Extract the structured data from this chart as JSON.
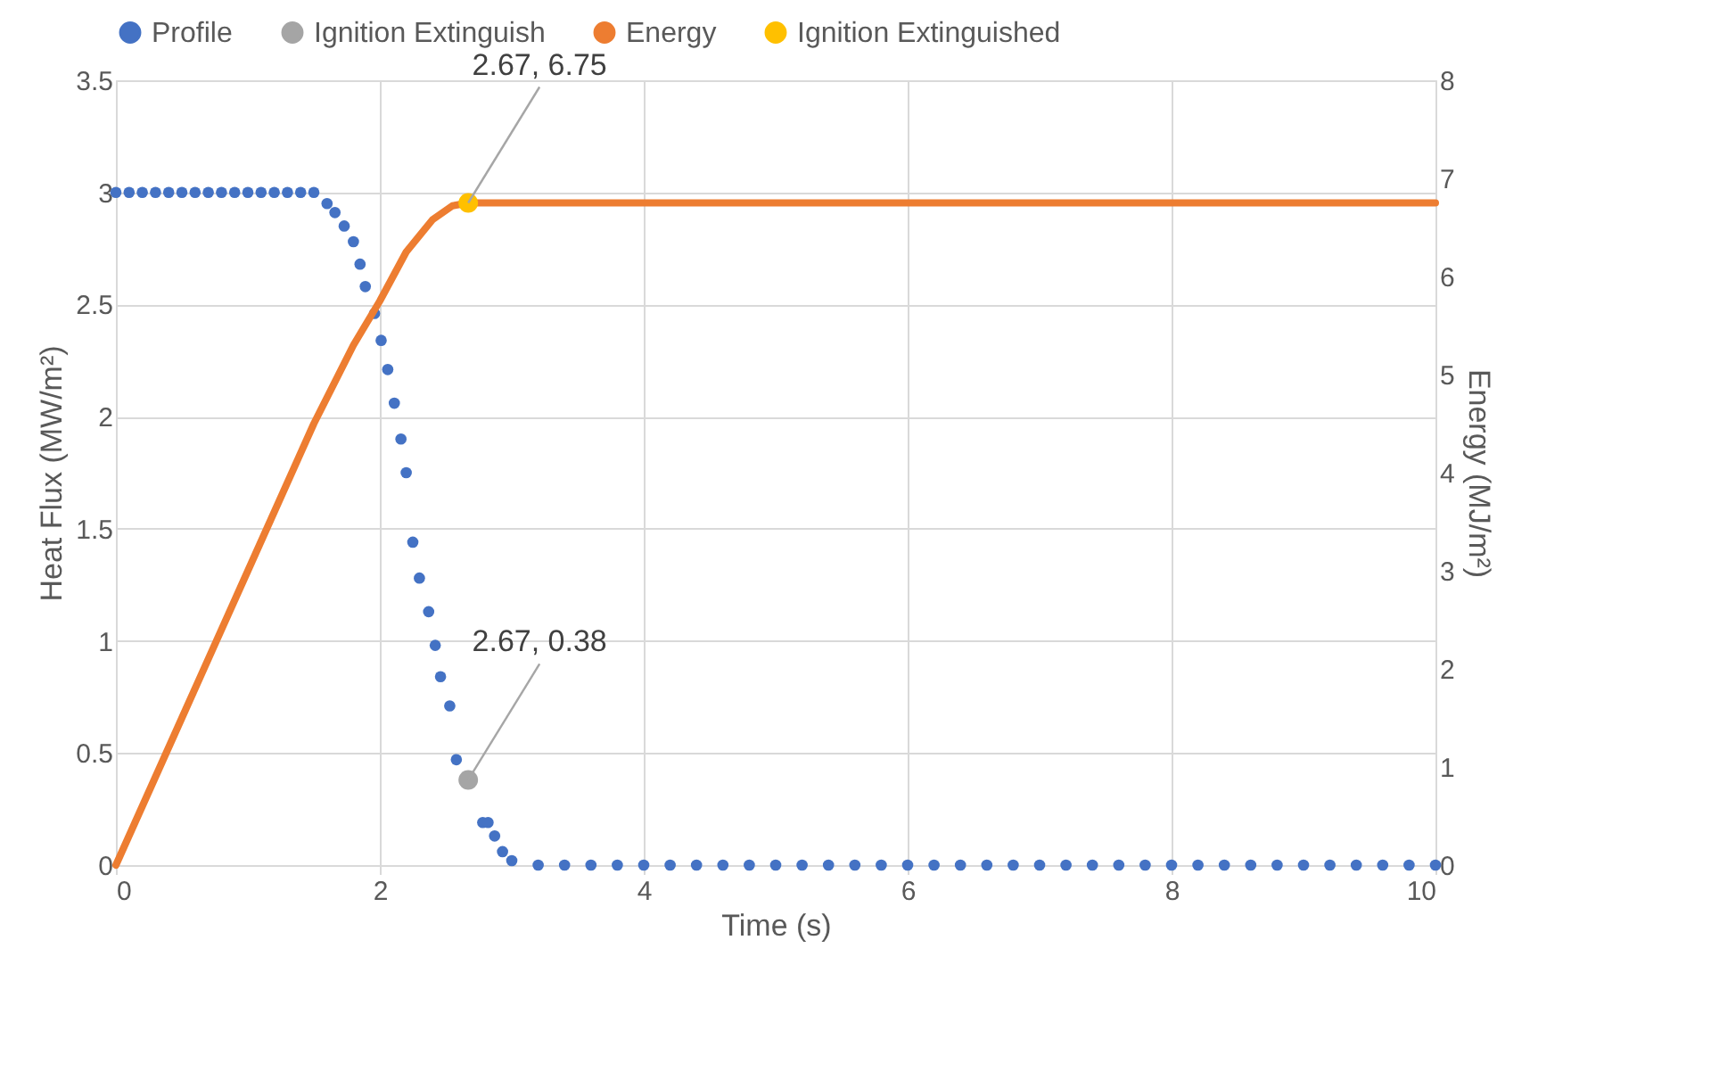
{
  "chart_data": {
    "type": "scatter",
    "xlabel": "Time (s)",
    "ylabel": "Heat Flux (MW/m²)",
    "y2label": "Energy (MJ/m²)",
    "xlim": [
      0,
      10
    ],
    "xticks": [
      0,
      2,
      4,
      6,
      8,
      10
    ],
    "ylim": [
      0,
      3.5
    ],
    "yticks": [
      0,
      0.5,
      1,
      1.5,
      2,
      2.5,
      3,
      3.5
    ],
    "y2lim": [
      0,
      8
    ],
    "y2ticks": [
      0,
      1,
      2,
      3,
      4,
      5,
      6,
      7,
      8
    ],
    "grid": true,
    "legend": "top",
    "marker": "circle",
    "series": [
      {
        "name": "Profile",
        "color": "#4472c4",
        "x": [
          0,
          0.1,
          0.2,
          0.3,
          0.4,
          0.5,
          0.6,
          0.7,
          0.8,
          0.9,
          1.0,
          1.1,
          1.2,
          1.3,
          1.4,
          1.5,
          1.6,
          1.66,
          1.73,
          1.8,
          1.85,
          1.89,
          1.96,
          2.01,
          2.06,
          2.11,
          2.16,
          2.2,
          2.25,
          2.3,
          2.37,
          2.42,
          2.46,
          2.53,
          2.58,
          2.78,
          2.82,
          2.87,
          2.93,
          3.0,
          3.2,
          3.4,
          3.6,
          3.8,
          4.0,
          4.2,
          4.4,
          4.6,
          4.8,
          5.0,
          5.2,
          5.4,
          5.6,
          5.8,
          6.0,
          6.2,
          6.4,
          6.6,
          6.8,
          7.0,
          7.2,
          7.4,
          7.6,
          7.8,
          8.0,
          8.2,
          8.4,
          8.6,
          8.8,
          9.0,
          9.2,
          9.4,
          9.6,
          9.8,
          10.0
        ],
        "values": [
          3,
          3,
          3,
          3,
          3,
          3,
          3,
          3,
          3,
          3,
          3,
          3,
          3,
          3,
          3,
          3,
          2.95,
          2.91,
          2.85,
          2.78,
          2.68,
          2.58,
          2.46,
          2.34,
          2.21,
          2.06,
          1.9,
          1.75,
          1.44,
          1.28,
          1.13,
          0.98,
          0.84,
          0.71,
          0.47,
          0.19,
          0.19,
          0.13,
          0.06,
          0.02,
          0,
          0,
          0,
          0,
          0,
          0,
          0,
          0,
          0,
          0,
          0,
          0,
          0,
          0,
          0,
          0,
          0,
          0,
          0,
          0,
          0,
          0,
          0,
          0,
          0,
          0,
          0,
          0,
          0,
          0,
          0,
          0,
          0,
          0,
          0
        ]
      },
      {
        "name": "Ignition Extinguish",
        "type": "scatter",
        "color": "#a5a5a5",
        "x": [
          2.67
        ],
        "values": [
          0.38
        ],
        "value_labels": [
          "2.67, 0.38"
        ]
      },
      {
        "name": "Energy",
        "type": "line",
        "axis": "y2",
        "marker": "none",
        "color": "#ed7d31",
        "x": [
          0,
          0.5,
          1,
          1.5,
          1.8,
          2,
          2.2,
          2.4,
          2.55,
          2.67,
          10
        ],
        "values": [
          0,
          1.5,
          3.0,
          4.5,
          5.3,
          5.75,
          6.25,
          6.58,
          6.72,
          6.75,
          6.75
        ]
      },
      {
        "name": "Ignition Extinguished",
        "type": "scatter",
        "axis": "y2",
        "color": "#ffc000",
        "x": [
          2.67
        ],
        "values": [
          6.75
        ],
        "value_labels": [
          "2.67, 6.75"
        ]
      }
    ]
  }
}
